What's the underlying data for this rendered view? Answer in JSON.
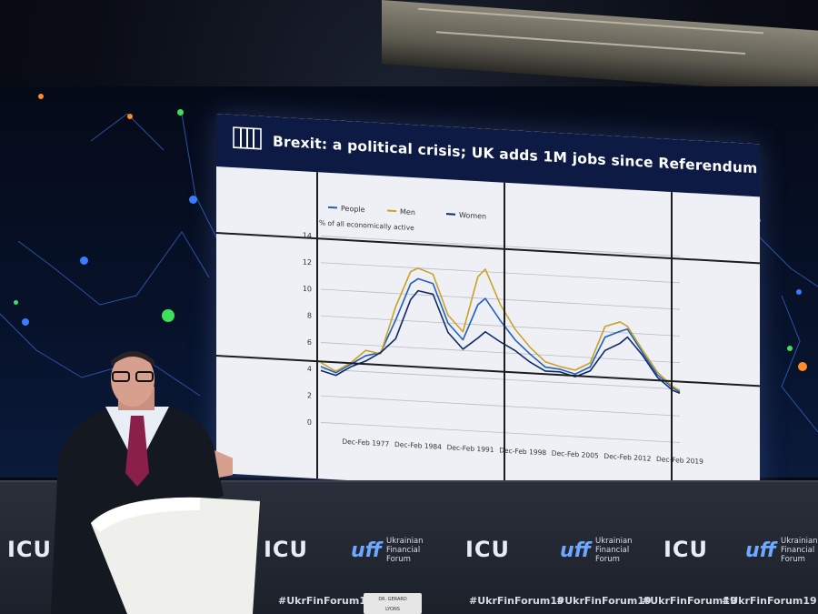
{
  "slide": {
    "title": "Brexit: a political crisis; UK adds 1M jobs since Referendum",
    "logo_icon": "bars-logo-icon"
  },
  "chart_data": {
    "type": "line",
    "title": "",
    "ylabel": "% of all economically active",
    "ylim": [
      0,
      14
    ],
    "yticks": [
      "14",
      "12",
      "10",
      "8",
      "6",
      "4",
      "2",
      "0"
    ],
    "xticks": [
      "Dec-Feb 1977",
      "Dec-Feb 1984",
      "Dec-Feb 1991",
      "Dec-Feb 1998",
      "Dec-Feb 2005",
      "Dec-Feb 2012",
      "Dec-Feb 2019"
    ],
    "x": [
      1971,
      1973,
      1975,
      1977,
      1979,
      1981,
      1983,
      1984,
      1986,
      1988,
      1990,
      1992,
      1993,
      1995,
      1997,
      1999,
      2001,
      2003,
      2005,
      2007,
      2009,
      2011,
      2012,
      2014,
      2016,
      2018,
      2019
    ],
    "series": [
      {
        "name": "People",
        "color": "#1f5fbf",
        "values": [
          4.2,
          3.8,
          4.5,
          5.2,
          5.5,
          8.0,
          10.8,
          11.2,
          10.9,
          8.0,
          6.8,
          9.5,
          10.0,
          8.4,
          7.0,
          6.0,
          5.1,
          5.0,
          4.7,
          5.3,
          7.6,
          8.1,
          8.3,
          6.6,
          5.0,
          4.1,
          3.8
        ]
      },
      {
        "name": "Men",
        "color": "#c9a227",
        "values": [
          4.5,
          3.9,
          4.6,
          5.6,
          5.4,
          9.0,
          11.7,
          12.0,
          11.6,
          8.6,
          7.4,
          11.6,
          12.2,
          9.6,
          7.8,
          6.5,
          5.5,
          5.2,
          5.0,
          5.6,
          8.4,
          8.8,
          8.5,
          6.8,
          5.2,
          4.2,
          3.9
        ]
      },
      {
        "name": "Women",
        "color": "#0d2a66",
        "values": [
          3.9,
          3.6,
          4.3,
          4.8,
          5.5,
          6.6,
          9.6,
          10.3,
          10.1,
          7.3,
          6.1,
          7.0,
          7.5,
          6.8,
          6.2,
          5.4,
          4.8,
          4.8,
          4.5,
          5.0,
          6.6,
          7.2,
          7.7,
          6.4,
          4.8,
          3.9,
          3.7
        ]
      }
    ],
    "legend_position": "top-left",
    "grid": true
  },
  "event": {
    "brand_short": "ICU",
    "brand_uff": "uff",
    "forum_name_lines": [
      "Ukrainian",
      "Financial",
      "Forum"
    ],
    "hashtag": "#UkrFinForum19",
    "namecard": [
      "DR. GERARD",
      "LYONS"
    ]
  }
}
